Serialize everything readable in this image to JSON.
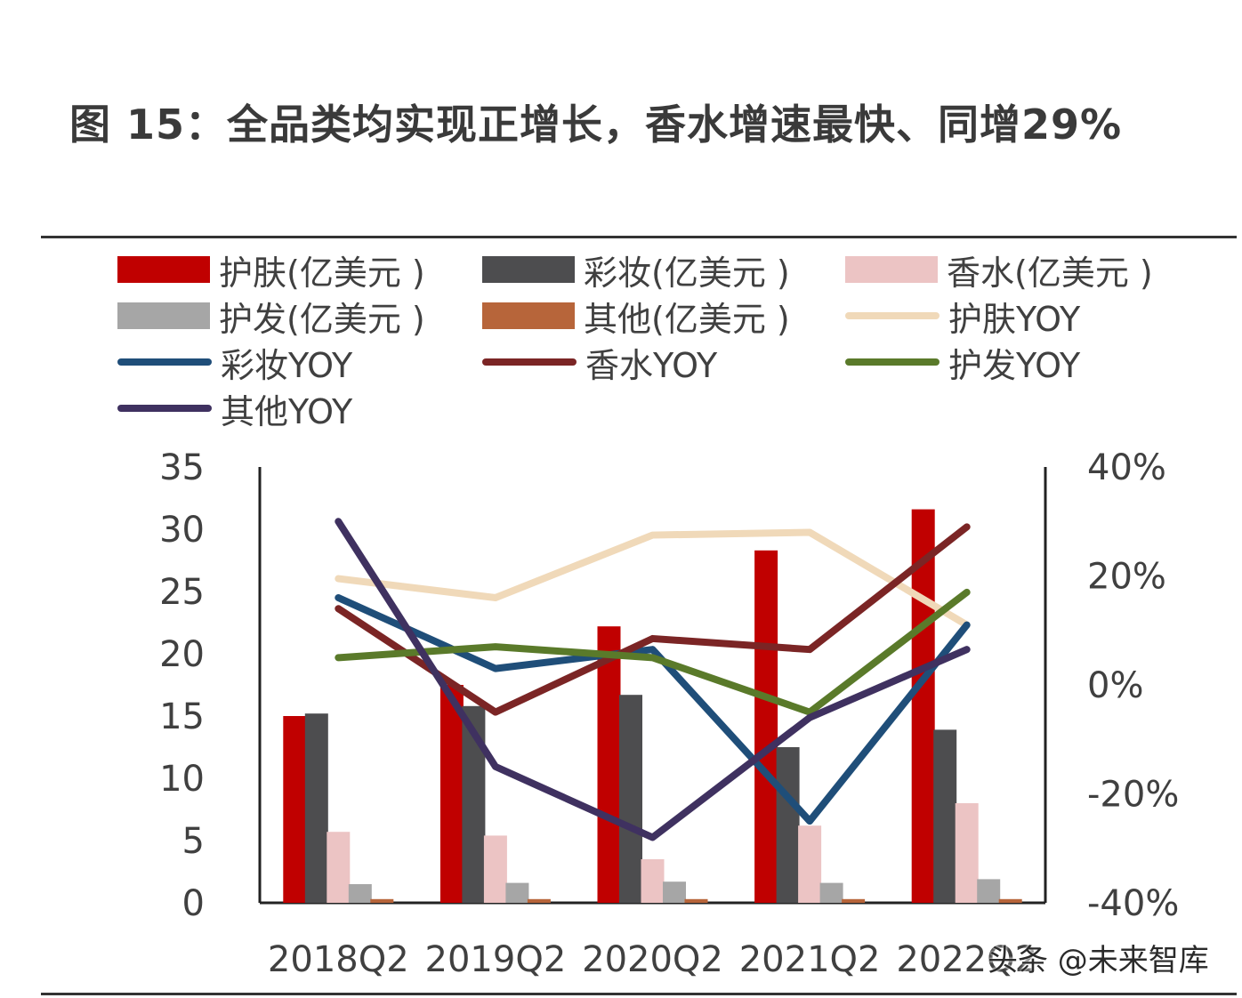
{
  "title": "图  15：全品类均实现正增长，香水增速最快、同增29%",
  "watermark": "头条 @未来智库",
  "chart_data": {
    "type": "bar",
    "categories": [
      "2018Q2",
      "2019Q2",
      "2020Q2",
      "2021Q2",
      "2022Q2"
    ],
    "y_left_ticks": [
      "35",
      "30",
      "25",
      "20",
      "15",
      "10",
      "5",
      "0"
    ],
    "y_left_lim": [
      0,
      35
    ],
    "y_right_ticks": [
      "40%",
      "20%",
      "0%",
      "-20%",
      "-40%"
    ],
    "y_right_lim": [
      -40,
      40
    ],
    "legend_position": "top",
    "bar_series": [
      {
        "name": "护肤(亿美元 )",
        "color": "#c00000",
        "values": [
          15.0,
          17.5,
          22.2,
          28.3,
          31.6
        ]
      },
      {
        "name": "彩妆(亿美元 )",
        "color": "#4d4d4f",
        "values": [
          15.2,
          15.8,
          16.7,
          12.5,
          13.9
        ]
      },
      {
        "name": "香水(亿美元 )",
        "color": "#ecc4c4",
        "values": [
          5.7,
          5.4,
          3.5,
          6.2,
          8.0
        ]
      },
      {
        "name": "护发(亿美元 )",
        "color": "#a6a6a6",
        "values": [
          1.5,
          1.6,
          1.7,
          1.6,
          1.9
        ]
      },
      {
        "name": "其他(亿美元 )",
        "color": "#b7653a",
        "values": [
          0.3,
          0.3,
          0.3,
          0.3,
          0.3
        ]
      }
    ],
    "line_series": [
      {
        "name": "护肤YOY",
        "color": "#f0d9b9",
        "values": [
          19.5,
          16.0,
          27.5,
          28.0,
          11.0
        ]
      },
      {
        "name": "彩妆YOY",
        "color": "#1f4e79",
        "values": [
          16.0,
          3.0,
          6.5,
          -25.0,
          11.0
        ]
      },
      {
        "name": "香水YOY",
        "color": "#7b2525",
        "values": [
          14.0,
          -5.0,
          8.5,
          6.5,
          29.0
        ]
      },
      {
        "name": "护发YOY",
        "color": "#5a7a2a",
        "values": [
          5.0,
          7.0,
          5.0,
          -5.0,
          17.0
        ]
      },
      {
        "name": "其他YOY",
        "color": "#3f3160",
        "values": [
          30.0,
          -15.0,
          -28.0,
          -6.0,
          6.5
        ]
      }
    ]
  }
}
